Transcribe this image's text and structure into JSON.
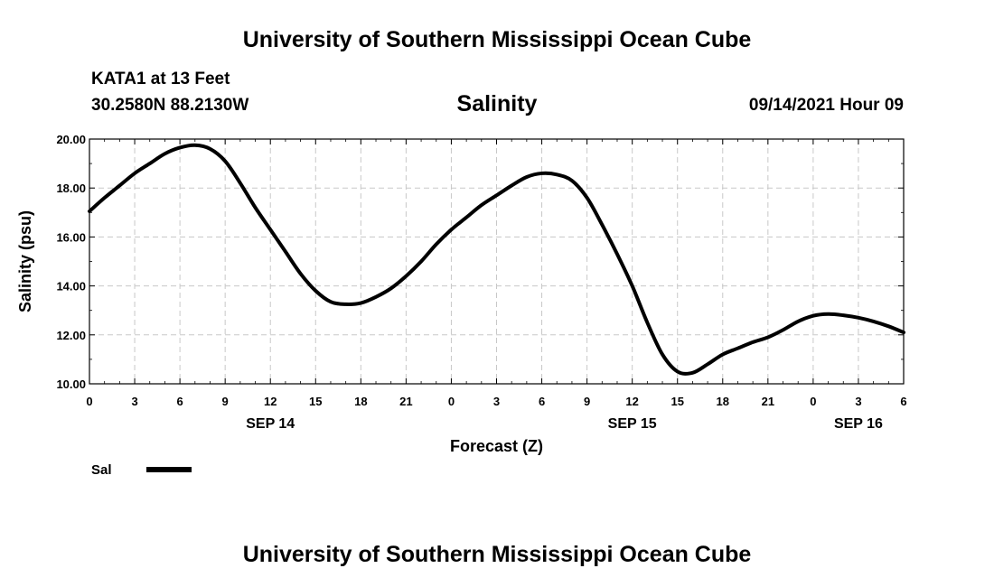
{
  "header": {
    "title": "University of Southern Mississippi Ocean Cube",
    "station": "KATA1 at 13 Feet",
    "coordinates": "30.2580N  88.2130W",
    "timestamp": "09/14/2021 Hour 09"
  },
  "footer": {
    "title": "University of Southern Mississippi Ocean Cube"
  },
  "chart_data": {
    "type": "line",
    "title": "Salinity",
    "xlabel": "Forecast (Z)",
    "ylabel": "Salinity (psu)",
    "ylim": [
      10,
      20
    ],
    "xlim": [
      0,
      54
    ],
    "y_ticks": [
      "10.00",
      "12.00",
      "14.00",
      "16.00",
      "18.00",
      "20.00"
    ],
    "x_ticks": [
      "0",
      "3",
      "6",
      "9",
      "12",
      "15",
      "18",
      "21",
      "0",
      "3",
      "6",
      "9",
      "12",
      "15",
      "18",
      "21",
      "0",
      "3",
      "6"
    ],
    "date_labels": [
      {
        "label": "SEP 14",
        "hour": 12
      },
      {
        "label": "SEP 15",
        "hour": 36
      },
      {
        "label": "SEP 16",
        "hour": 51
      }
    ],
    "grid": true,
    "legend": "bottom-left",
    "line_color": "#000000",
    "series": [
      {
        "name": "Sal",
        "x": [
          0,
          1,
          2,
          3,
          4,
          5,
          6,
          7,
          8,
          9,
          10,
          11,
          12,
          13,
          14,
          15,
          16,
          17,
          18,
          19,
          20,
          21,
          22,
          23,
          24,
          25,
          26,
          27,
          28,
          29,
          30,
          31,
          32,
          33,
          34,
          35,
          36,
          37,
          38,
          39,
          40,
          41,
          42,
          43,
          44,
          45,
          46,
          47,
          48,
          49,
          50,
          51,
          52,
          53,
          54
        ],
        "values": [
          17.05,
          17.6,
          18.1,
          18.6,
          19.0,
          19.4,
          19.65,
          19.75,
          19.6,
          19.1,
          18.2,
          17.2,
          16.3,
          15.4,
          14.5,
          13.8,
          13.35,
          13.25,
          13.3,
          13.55,
          13.9,
          14.4,
          15.0,
          15.7,
          16.3,
          16.8,
          17.3,
          17.7,
          18.1,
          18.45,
          18.6,
          18.55,
          18.3,
          17.6,
          16.5,
          15.3,
          14.0,
          12.5,
          11.2,
          10.5,
          10.45,
          10.8,
          11.2,
          11.45,
          11.7,
          11.9,
          12.2,
          12.55,
          12.78,
          12.85,
          12.8,
          12.7,
          12.55,
          12.35,
          12.1
        ]
      }
    ]
  }
}
